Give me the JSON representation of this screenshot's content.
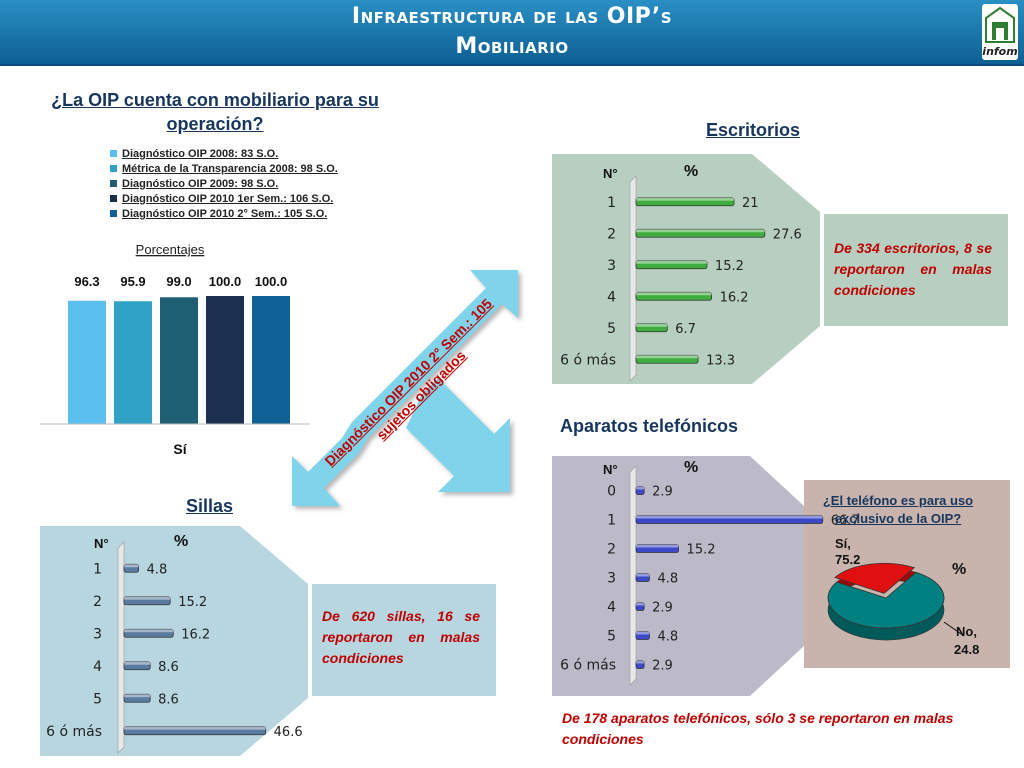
{
  "header": {
    "title_line1": "Infraestructura de las OIP’s",
    "title_line2": "Mobiliario",
    "logo_text": "infom"
  },
  "colors": {
    "header": "#1a7fb5",
    "green_panel": "#b7cfc0",
    "blue_panel": "#b7d6e0",
    "mauve_panel": "#c9b4ad",
    "purple_panel": "#bcb9c8",
    "arrow": "#7fd3ea",
    "note_text": "#c00000"
  },
  "arrow_label": "Diagnóstico OIP 2010 2° Sem.: 105 sujetos obligados",
  "main_chart": {
    "question": "¿La OIP cuenta con mobiliario para su operación?",
    "legend": [
      {
        "label": "Diagnóstico OIP 2008: 83 S.O.",
        "color": "#5bc0f0"
      },
      {
        "label": "Métrica de la Transparencia 2008: 98 S.O.",
        "color": "#2fa2c6"
      },
      {
        "label": "Diagnóstico OIP 2009: 98 S.O.",
        "color": "#1f5f73"
      },
      {
        "label": "Diagnóstico OIP 2010 1er Sem.: 106 S.O.",
        "color": "#1c2f4f"
      },
      {
        "label": "Diagnóstico OIP 2010 2° Sem.: 105 S.O.",
        "color": "#0f6196"
      }
    ]
  },
  "escritorios": {
    "title": "Escritorios",
    "col_n": "N°",
    "col_pct": "%",
    "note": "De 334 escritorios, 8 se reportaron en malas condiciones"
  },
  "sillas": {
    "title": "Sillas",
    "col_n": "N°",
    "col_pct": "%",
    "note": "De 620 sillas, 16 se reportaron en malas condiciones"
  },
  "telefonos": {
    "title": "Aparatos telefónicos",
    "col_n": "N°",
    "col_pct": "%",
    "note": "De 178 aparatos telefónicos, sólo 3 se reportaron en malas condiciones"
  },
  "pie": {
    "question": "¿El teléfono es para uso exclusivo de la OIP?",
    "pct_label": "%",
    "si_label": "Sí,",
    "si_value": "75.2",
    "no_label": "No,",
    "no_value": "24.8"
  },
  "chart_data": [
    {
      "type": "bar",
      "title": "Porcentajes",
      "categories": [
        "Sí"
      ],
      "series": [
        {
          "name": "Diagnóstico OIP 2008: 83 S.O.",
          "values": [
            96.3
          ]
        },
        {
          "name": "Métrica de la Transparencia 2008: 98 S.O.",
          "values": [
            95.9
          ]
        },
        {
          "name": "Diagnóstico OIP 2009: 98 S.O.",
          "values": [
            99.0
          ]
        },
        {
          "name": "Diagnóstico OIP 2010 1er Sem.: 106 S.O.",
          "values": [
            100.0
          ]
        },
        {
          "name": "Diagnóstico OIP 2010 2° Sem.: 105 S.O.",
          "values": [
            100.0
          ]
        }
      ],
      "value_labels": [
        "96.3",
        "95.9",
        "99.0",
        "100.0",
        "100.0"
      ],
      "ylim": [
        0,
        100
      ],
      "legend": "top"
    },
    {
      "type": "bar",
      "orientation": "horizontal",
      "title": "Escritorios",
      "categories": [
        "1",
        "2",
        "3",
        "4",
        "5",
        "6 ó más"
      ],
      "values": [
        21,
        27.6,
        15.2,
        16.2,
        6.7,
        13.3
      ],
      "value_labels": [
        "21",
        "27.6",
        "15.2",
        "16.2",
        "6.7",
        "13.3"
      ],
      "xlim": [
        0,
        30
      ],
      "color": "#3fae3f"
    },
    {
      "type": "bar",
      "orientation": "horizontal",
      "title": "Sillas",
      "categories": [
        "1",
        "2",
        "3",
        "4",
        "5",
        "6 ó más"
      ],
      "values": [
        4.8,
        15.2,
        16.2,
        8.6,
        8.6,
        46.6
      ],
      "value_labels": [
        "4.8",
        "15.2",
        "16.2",
        "8.6",
        "8.6",
        "46.6"
      ],
      "xlim": [
        0,
        50
      ],
      "color": "#5a7ba0"
    },
    {
      "type": "bar",
      "orientation": "horizontal",
      "title": "Aparatos telefónicos",
      "categories": [
        "0",
        "1",
        "2",
        "3",
        "4",
        "5",
        "6 ó más"
      ],
      "values": [
        2.9,
        66.7,
        15.2,
        4.8,
        2.9,
        4.8,
        2.9
      ],
      "value_labels": [
        "2.9",
        "66.7",
        "15.2",
        "4.8",
        "2.9",
        "4.8",
        "2.9"
      ],
      "xlim": [
        0,
        75
      ],
      "color": "#3b48c8"
    },
    {
      "type": "pie",
      "title": "¿El teléfono es para uso exclusivo de la OIP?",
      "categories": [
        "Sí",
        "No"
      ],
      "values": [
        75.2,
        24.8
      ],
      "colors": [
        "#008080",
        "#e01010"
      ]
    }
  ]
}
